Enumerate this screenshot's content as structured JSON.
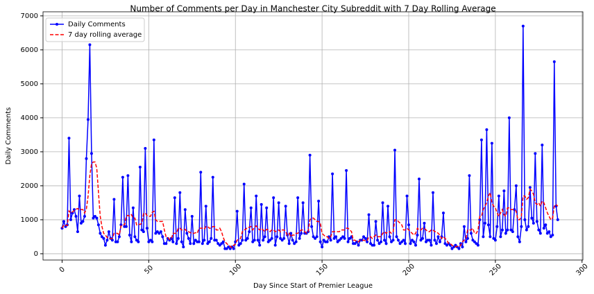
{
  "chart_data": {
    "type": "line",
    "title": "Number of Comments per Day in Manchester City Subreddit with 7 Day Rolling Average",
    "x_label": "Day Since Start of Premier League",
    "y_label": "Daily Comments",
    "x": [
      0,
      1,
      2,
      3,
      4,
      5,
      6,
      7,
      8,
      9,
      10,
      11,
      12,
      13,
      14,
      15,
      16,
      17,
      18,
      19,
      20,
      21,
      22,
      23,
      24,
      25,
      26,
      27,
      28,
      29,
      30,
      31,
      32,
      33,
      34,
      35,
      36,
      37,
      38,
      39,
      40,
      41,
      42,
      43,
      44,
      45,
      46,
      47,
      48,
      49,
      50,
      51,
      52,
      53,
      54,
      55,
      56,
      57,
      58,
      59,
      60,
      61,
      62,
      63,
      64,
      65,
      66,
      67,
      68,
      69,
      70,
      71,
      72,
      73,
      74,
      75,
      76,
      77,
      78,
      79,
      80,
      81,
      82,
      83,
      84,
      85,
      86,
      87,
      88,
      89,
      90,
      91,
      92,
      93,
      94,
      95,
      96,
      97,
      98,
      99,
      100,
      101,
      102,
      103,
      104,
      105,
      106,
      107,
      108,
      109,
      110,
      111,
      112,
      113,
      114,
      115,
      116,
      117,
      118,
      119,
      120,
      121,
      122,
      123,
      124,
      125,
      126,
      127,
      128,
      129,
      130,
      131,
      132,
      133,
      134,
      135,
      136,
      137,
      138,
      139,
      140,
      141,
      142,
      143,
      144,
      145,
      146,
      147,
      148,
      149,
      150,
      151,
      152,
      153,
      154,
      155,
      156,
      157,
      158,
      159,
      160,
      161,
      162,
      163,
      164,
      165,
      166,
      167,
      168,
      169,
      170,
      171,
      172,
      173,
      174,
      175,
      176,
      177,
      178,
      179,
      180,
      181,
      182,
      183,
      184,
      185,
      186,
      187,
      188,
      189,
      190,
      191,
      192,
      193,
      194,
      195,
      196,
      197,
      198,
      199,
      200,
      201,
      202,
      203,
      204,
      205,
      206,
      207,
      208,
      209,
      210,
      211,
      212,
      213,
      214,
      215,
      216,
      217,
      218,
      219,
      220,
      221,
      222,
      223,
      224,
      225,
      226,
      227,
      228,
      229,
      230,
      231,
      232,
      233,
      234,
      235,
      236,
      237,
      238,
      239,
      240,
      241,
      242,
      243,
      244,
      245,
      246,
      247,
      248,
      249,
      250,
      251,
      252,
      253,
      254,
      255,
      256,
      257,
      258,
      259,
      260,
      261,
      262,
      263,
      264,
      265,
      266,
      267,
      268,
      269,
      270,
      271,
      272,
      273,
      274,
      275,
      276,
      277,
      278,
      279,
      280,
      281,
      282,
      283,
      284,
      285,
      286
    ],
    "series": [
      {
        "name": "Daily Comments",
        "color": "#0000ff",
        "linestyle": "solid",
        "marker": true,
        "values": [
          750,
          950,
          800,
          850,
          3400,
          1000,
          1200,
          1300,
          1100,
          650,
          1700,
          900,
          950,
          1100,
          2800,
          3950,
          6150,
          2950,
          1050,
          1100,
          1050,
          850,
          600,
          500,
          450,
          250,
          400,
          650,
          450,
          400,
          1600,
          350,
          350,
          500,
          850,
          2250,
          800,
          800,
          2300,
          550,
          350,
          1350,
          500,
          400,
          350,
          2550,
          700,
          650,
          3100,
          750,
          350,
          400,
          350,
          3350,
          600,
          650,
          600,
          650,
          500,
          300,
          300,
          450,
          400,
          450,
          350,
          1650,
          300,
          450,
          1800,
          350,
          200,
          1300,
          600,
          450,
          300,
          1100,
          300,
          400,
          350,
          350,
          2400,
          300,
          400,
          1400,
          300,
          350,
          450,
          2250,
          400,
          400,
          300,
          250,
          300,
          350,
          150,
          150,
          200,
          150,
          200,
          150,
          350,
          1250,
          250,
          300,
          400,
          2050,
          400,
          450,
          650,
          1350,
          350,
          400,
          1700,
          400,
          250,
          1450,
          400,
          500,
          1350,
          350,
          400,
          450,
          1650,
          250,
          500,
          1500,
          450,
          400,
          450,
          1400,
          550,
          300,
          600,
          400,
          300,
          350,
          1650,
          450,
          600,
          1500,
          600,
          600,
          650,
          2900,
          800,
          500,
          450,
          500,
          1550,
          350,
          200,
          400,
          350,
          350,
          500,
          400,
          2350,
          450,
          500,
          350,
          400,
          450,
          500,
          450,
          2450,
          350,
          450,
          500,
          300,
          300,
          350,
          250,
          400,
          400,
          500,
          450,
          350,
          1150,
          300,
          250,
          250,
          950,
          400,
          300,
          350,
          1500,
          400,
          300,
          1400,
          500,
          350,
          400,
          3050,
          500,
          400,
          300,
          350,
          400,
          300,
          1700,
          850,
          300,
          400,
          350,
          250,
          550,
          2200,
          400,
          450,
          900,
          350,
          400,
          400,
          250,
          1800,
          400,
          300,
          500,
          350,
          500,
          1200,
          300,
          250,
          300,
          250,
          150,
          200,
          250,
          200,
          150,
          300,
          200,
          800,
          350,
          450,
          2300,
          600,
          400,
          350,
          300,
          250,
          1000,
          3350,
          500,
          900,
          3650,
          850,
          500,
          3250,
          450,
          400,
          800,
          1700,
          500,
          700,
          1850,
          600,
          700,
          4000,
          700,
          650,
          1300,
          2000,
          500,
          350,
          800,
          6700,
          1000,
          700,
          800,
          1950,
          1050,
          900,
          2950,
          950,
          700,
          600,
          3200,
          750,
          850,
          600,
          650,
          500,
          550,
          5650,
          1400,
          1000
        ]
      },
      {
        "name": "7 day rolling average",
        "color": "#ff0000",
        "linestyle": "dashed",
        "marker": false,
        "values": [
          750,
          850,
          830,
          830,
          1260,
          1200,
          1230,
          1270,
          1310,
          1330,
          1290,
          1300,
          1300,
          1200,
          1310,
          1700,
          2300,
          2650,
          2700,
          2700,
          2520,
          1800,
          1100,
          800,
          600,
          550,
          480,
          470,
          440,
          450,
          600,
          600,
          600,
          550,
          820,
          850,
          850,
          1100,
          1130,
          1100,
          1150,
          1050,
          1050,
          850,
          880,
          860,
          900,
          1180,
          1200,
          1120,
          1100,
          1100,
          1220,
          1250,
          1000,
          950,
          950,
          950,
          950,
          700,
          500,
          480,
          420,
          430,
          600,
          600,
          600,
          750,
          750,
          700,
          700,
          720,
          650,
          650,
          620,
          600,
          600,
          620,
          600,
          750,
          750,
          750,
          720,
          800,
          800,
          750,
          750,
          800,
          800,
          700,
          700,
          750,
          650,
          480,
          350,
          300,
          250,
          220,
          180,
          250,
          280,
          400,
          420,
          450,
          650,
          700,
          720,
          780,
          780,
          800,
          700,
          780,
          820,
          750,
          700,
          750,
          700,
          650,
          720,
          700,
          650,
          700,
          700,
          650,
          680,
          700,
          650,
          700,
          700,
          650,
          550,
          600,
          500,
          550,
          550,
          600,
          600,
          650,
          700,
          700,
          650,
          600,
          650,
          1000,
          1050,
          1050,
          1000,
          950,
          950,
          900,
          600,
          550,
          500,
          500,
          450,
          500,
          650,
          650,
          650,
          650,
          650,
          700,
          700,
          700,
          750,
          750,
          700,
          650,
          400,
          400,
          350,
          350,
          400,
          400,
          400,
          380,
          380,
          500,
          500,
          450,
          500,
          550,
          500,
          500,
          500,
          600,
          650,
          600,
          650,
          650,
          600,
          650,
          1000,
          1000,
          950,
          900,
          850,
          700,
          700,
          750,
          700,
          650,
          600,
          550,
          600,
          750,
          700,
          700,
          750,
          750,
          700,
          650,
          650,
          700,
          700,
          650,
          650,
          600,
          550,
          450,
          500,
          450,
          400,
          300,
          300,
          250,
          220,
          200,
          220,
          200,
          250,
          350,
          400,
          450,
          700,
          700,
          700,
          750,
          600,
          600,
          700,
          1100,
          1100,
          1300,
          1400,
          1500,
          1700,
          1800,
          1500,
          1400,
          1350,
          1200,
          1100,
          1200,
          1300,
          1150,
          1100,
          1350,
          1350,
          1300,
          1300,
          1300,
          1250,
          1000,
          1000,
          1100,
          1700,
          1700,
          1600,
          1650,
          1900,
          1850,
          1750,
          1500,
          1450,
          1500,
          1400,
          1550,
          1500,
          1350,
          1200,
          1100,
          1000,
          1050,
          1400,
          1450,
          1400
        ]
      }
    ],
    "xlim": [
      -11,
      300.5
    ],
    "ylim": [
      -185,
      7120
    ],
    "xticks": [
      0,
      50,
      100,
      150,
      200,
      250,
      300
    ],
    "yticks": [
      0,
      1000,
      2000,
      3000,
      4000,
      5000,
      6000,
      7000
    ],
    "grid": true,
    "legend": "upper left"
  }
}
